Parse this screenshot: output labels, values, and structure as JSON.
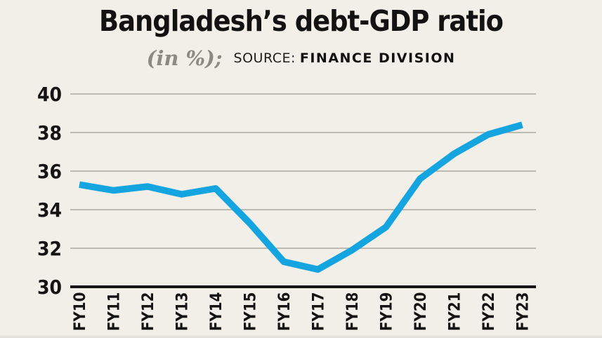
{
  "header": {
    "title": "Bangladesh’s debt-GDP ratio",
    "unit_note": "(in %);",
    "source_label": "SOURCE:",
    "source_value": "FINANCE DIVISION"
  },
  "chart_data": {
    "type": "line",
    "title": "Bangladesh’s debt-GDP ratio",
    "unit": "%",
    "categories": [
      "FY10",
      "FY11",
      "FY12",
      "FY13",
      "FY14",
      "FY15",
      "FY16",
      "FY17",
      "FY18",
      "FY19",
      "FY20",
      "FY21",
      "FY22",
      "FY23"
    ],
    "series": [
      {
        "name": "Debt-GDP ratio (%)",
        "values": [
          35.3,
          35.0,
          35.2,
          34.8,
          35.1,
          33.3,
          31.3,
          30.9,
          31.9,
          33.1,
          35.6,
          36.9,
          37.9,
          38.4
        ]
      }
    ],
    "ylim": [
      30,
      40
    ],
    "y_ticks": [
      30,
      32,
      34,
      36,
      38,
      40
    ],
    "x_label_rotation": -90,
    "grid": true,
    "legend": "none",
    "xlabel": "",
    "ylabel": ""
  },
  "style": {
    "background": "#f1efe7",
    "line_color": "#14a5e1",
    "grid_color": "#aaa89f",
    "axis_color": "#161616",
    "text_color": "#141414",
    "muted_text_color": "#8c8b83"
  }
}
